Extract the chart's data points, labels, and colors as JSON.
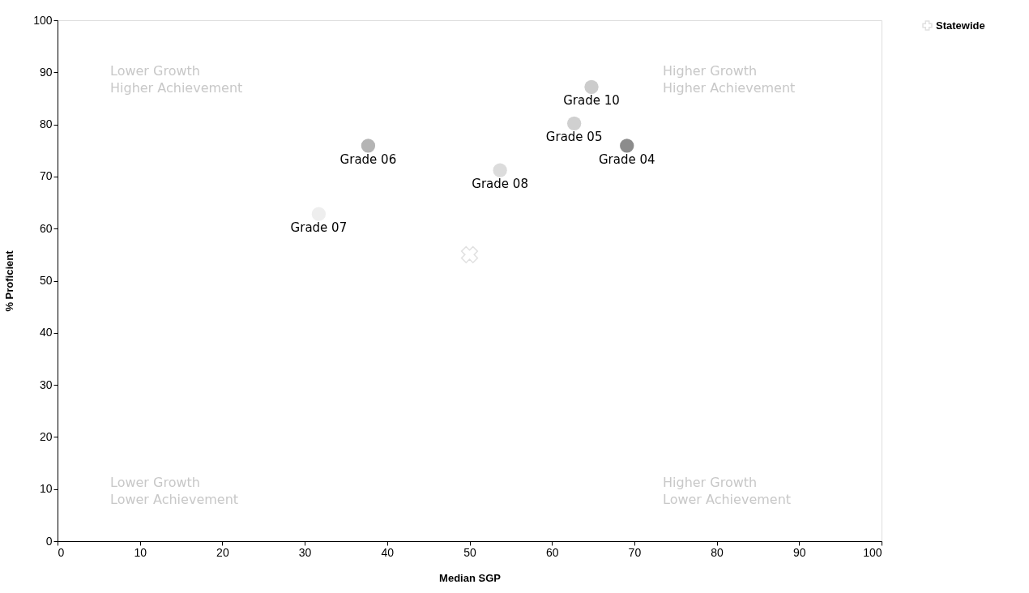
{
  "chart_data": {
    "type": "scatter",
    "xlabel": "Median SGP",
    "ylabel": "% Proficient",
    "xlim": [
      0,
      100
    ],
    "ylim": [
      0,
      100
    ],
    "xticks": [
      0,
      10,
      20,
      30,
      40,
      50,
      60,
      70,
      80,
      90,
      100
    ],
    "yticks": [
      0,
      10,
      20,
      30,
      40,
      50,
      60,
      70,
      80,
      90,
      100
    ],
    "grid": false,
    "legend": "right",
    "marker": "circle",
    "series": [
      {
        "x": [
          69.1,
          62.7,
          37.7,
          31.7,
          53.7,
          64.8
        ],
        "values": [
          75.9,
          80.2,
          75.9,
          62.8,
          71.2,
          87.2
        ],
        "colors": [
          "#8c8c8c",
          "#d0d0d0",
          "#b4b4b4",
          "#eeeeee",
          "#dcdcdc",
          "#cccccc"
        ]
      },
      {
        "name": "Statewide",
        "type": "scatter",
        "marker": "cross",
        "color": "#d4d4d4",
        "x": [
          50
        ],
        "values": [
          55
        ]
      }
    ],
    "annotations": [
      {
        "text": "Grade 04",
        "x": 69.1,
        "y": 75.9
      },
      {
        "text": "Grade 05",
        "x": 62.7,
        "y": 80.2
      },
      {
        "text": "Grade 06",
        "x": 37.7,
        "y": 75.9
      },
      {
        "text": "Grade 07",
        "x": 31.7,
        "y": 62.8
      },
      {
        "text": "Grade 08",
        "x": 53.7,
        "y": 71.2
      },
      {
        "text": "Grade 10",
        "x": 64.8,
        "y": 87.2
      },
      "Lower Growth\nHigher Achievement",
      "Higher Growth\nHigher Achievement",
      "Lower Growth\nLower Achievement",
      "Higher Growth\nLower Achievement"
    ]
  }
}
